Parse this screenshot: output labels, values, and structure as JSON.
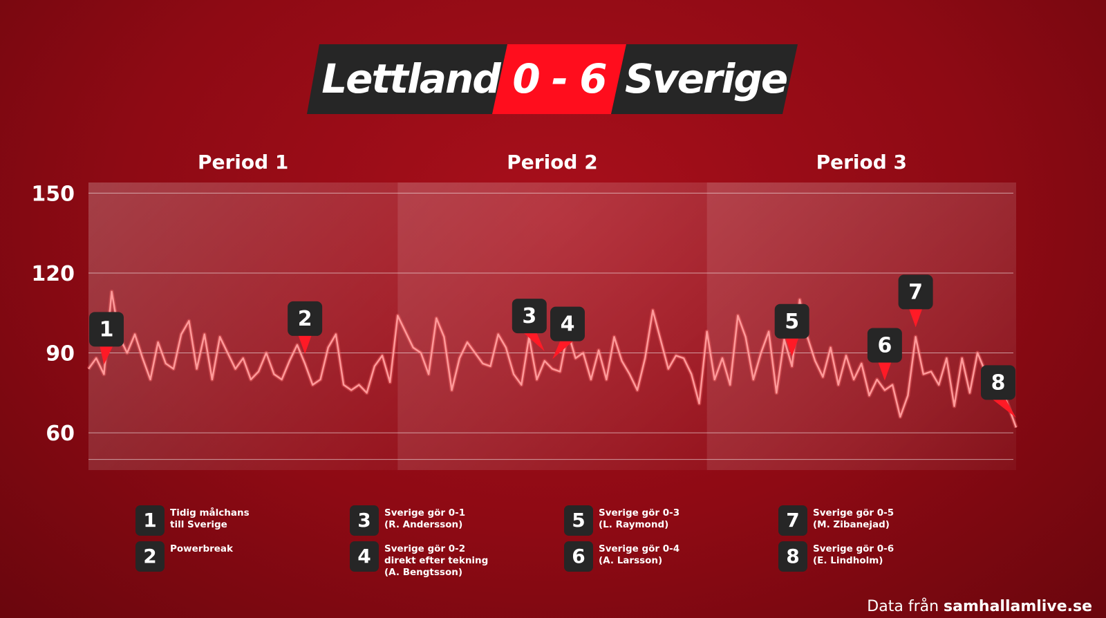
{
  "header": {
    "home_team": "Lettland",
    "score": "0 - 6",
    "away_team": "Sverige"
  },
  "footer": {
    "prefix": "Data från",
    "source": "samhallamlive.se"
  },
  "colors": {
    "background": "#9a0c16",
    "accent": "#ff0d1d",
    "badge": "#262626",
    "line": "#ff8a8a"
  },
  "chart_data": {
    "type": "line",
    "title": "",
    "xlabel": "",
    "ylabel": "",
    "periods": [
      "Period 1",
      "Period 2",
      "Period 3"
    ],
    "yticks": [
      150,
      120,
      90,
      60
    ],
    "ylim": [
      46,
      154
    ],
    "xlim": [
      0,
      60
    ],
    "grid": true,
    "series": [
      {
        "x": [
          0,
          0.5,
          1,
          1.5,
          2,
          2.5,
          3,
          3.5,
          4,
          4.5,
          5,
          5.5,
          6,
          6.5,
          7,
          7.5,
          8,
          8.5,
          9,
          9.5,
          10,
          10.5,
          11,
          11.5,
          12,
          12.5,
          13,
          13.5,
          14,
          14.5,
          15,
          15.5,
          16,
          16.5,
          17,
          17.5,
          18,
          18.5,
          19,
          19.5,
          20,
          20.5,
          21,
          21.5,
          22,
          22.5,
          23,
          23.5,
          24,
          24.5,
          25,
          25.5,
          26,
          26.5,
          27,
          27.5,
          28,
          28.5,
          29,
          29.5,
          30,
          30.5,
          31,
          31.5,
          32,
          32.5,
          33,
          33.5,
          34,
          34.5,
          35,
          35.5,
          36,
          36.5,
          37,
          37.5,
          38,
          38.5,
          39,
          39.5,
          40,
          40.5,
          41,
          41.5,
          42,
          42.5,
          43,
          43.5,
          44,
          44.5,
          45,
          45.5,
          46,
          46.5,
          47,
          47.5,
          48,
          48.5,
          49,
          49.5,
          50,
          50.5,
          51,
          51.5,
          52,
          52.5,
          53,
          53.5,
          54,
          54.5,
          55,
          55.5,
          56,
          56.5,
          57,
          57.5,
          58,
          58.5,
          59,
          59.5,
          60
        ],
        "y": [
          84,
          88,
          82,
          113,
          96,
          90,
          97,
          88,
          80,
          94,
          86,
          84,
          97,
          102,
          84,
          97,
          80,
          96,
          90,
          84,
          88,
          80,
          83,
          90,
          82,
          80,
          87,
          93,
          86,
          78,
          80,
          92,
          97,
          78,
          76,
          78,
          75,
          85,
          89,
          79,
          104,
          98,
          92,
          90,
          82,
          103,
          96,
          76,
          88,
          94,
          90,
          86,
          85,
          97,
          92,
          82,
          78,
          96,
          80,
          87,
          84,
          83,
          98,
          88,
          90,
          80,
          91,
          80,
          96,
          87,
          82,
          76,
          88,
          106,
          95,
          84,
          89,
          88,
          82,
          71,
          98,
          80,
          88,
          78,
          104,
          96,
          80,
          90,
          98,
          75,
          95,
          85,
          110,
          96,
          87,
          81,
          92,
          78,
          89,
          80,
          86,
          74,
          80,
          76,
          78,
          66,
          74,
          96,
          82,
          83,
          78,
          88,
          70,
          88,
          75,
          90,
          83,
          82,
          78,
          70,
          62
        ]
      }
    ],
    "events": [
      {
        "id": "1",
        "x": 1,
        "label": "Tidig målchans\ntill Sverige"
      },
      {
        "id": "2",
        "x": 14,
        "label": "Powerbreak"
      },
      {
        "id": "3",
        "x": 29.5,
        "label": "Sverige gör 0-1\n(R. Andersson)"
      },
      {
        "id": "4",
        "x": 30,
        "label": "Sverige gör 0-2\ndirekt efter tekning\n(A. Bengtsson)"
      },
      {
        "id": "5",
        "x": 45.5,
        "label": "Sverige gör 0-3\n(L. Raymond)"
      },
      {
        "id": "6",
        "x": 51.5,
        "label": "Sverige gör 0-4\n(A. Larsson)"
      },
      {
        "id": "7",
        "x": 53.5,
        "label": "Sverige gör 0-5\n(M. Zibanejad)"
      },
      {
        "id": "8",
        "x": 60,
        "label": "Sverige gör 0-6\n(E. Lindholm)"
      }
    ]
  }
}
